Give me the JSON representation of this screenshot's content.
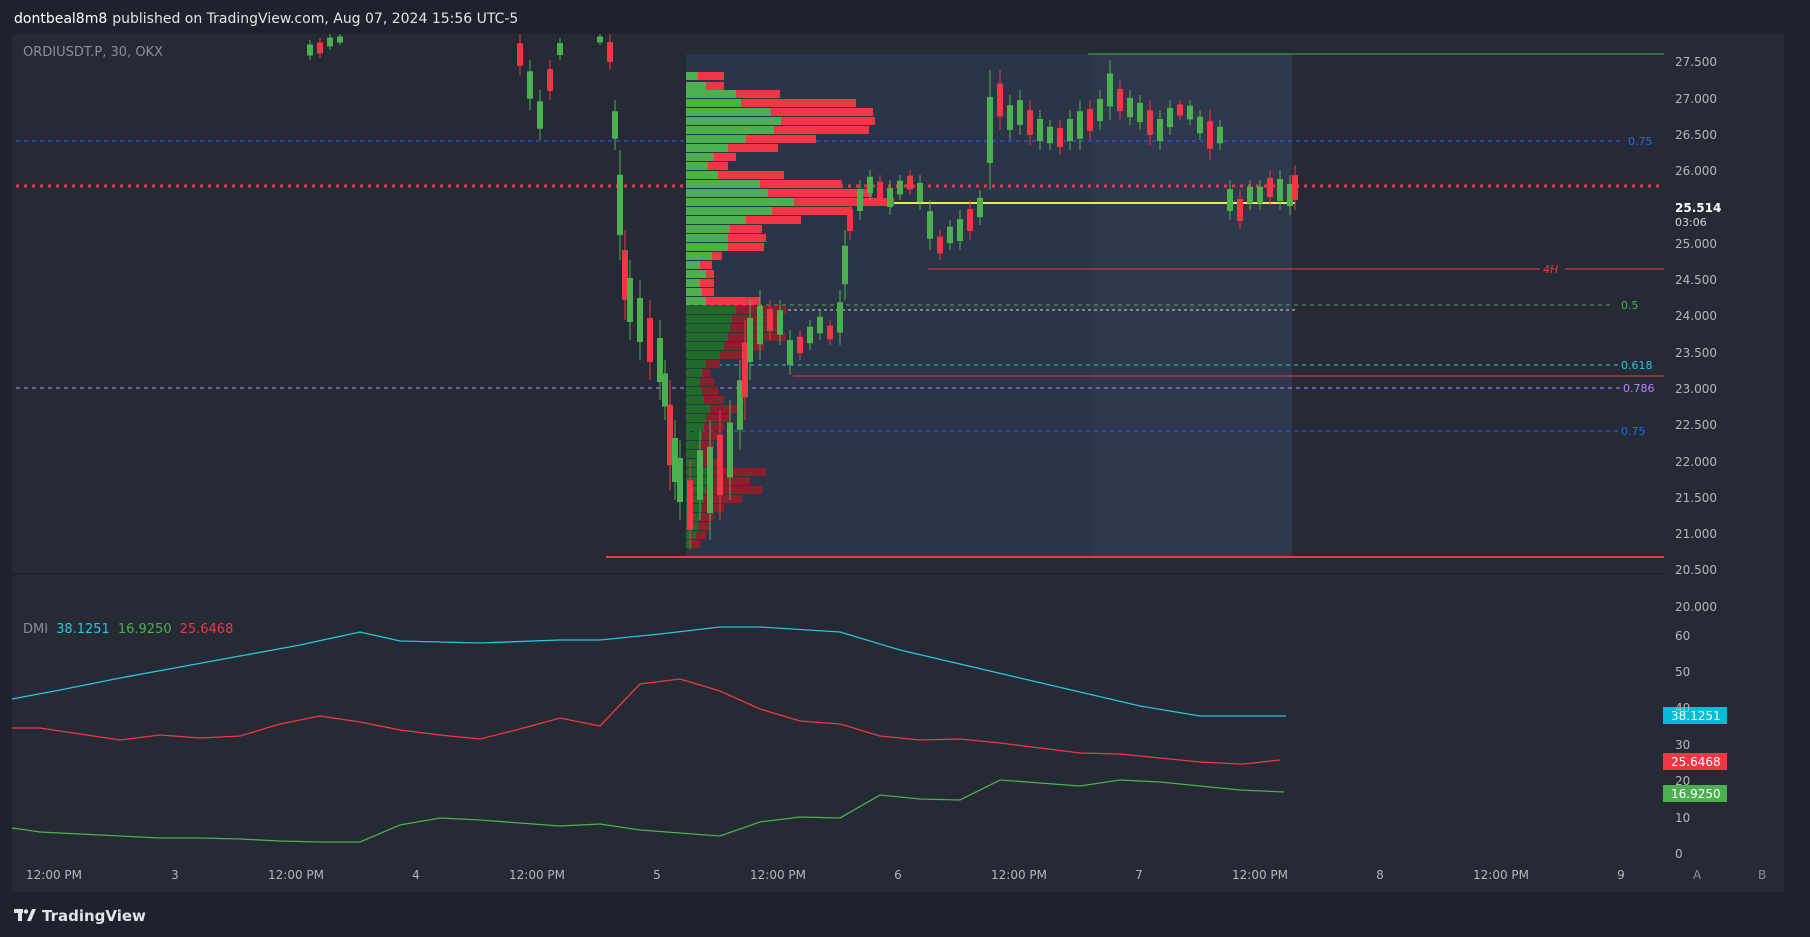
{
  "header": {
    "publisher": "dontbeal8m8",
    "published_text": "published on TradingView.com, Aug 07, 2024 15:56 UTC-5"
  },
  "chart": {
    "symbol_line": "ORDIUSDT.P, 30, OKX",
    "price_axis": [
      "27.500",
      "27.000",
      "26.500",
      "26.000",
      "25.000",
      "24.500",
      "24.000",
      "23.500",
      "23.000",
      "22.500",
      "22.000",
      "21.500",
      "21.000",
      "20.500",
      "20.000"
    ],
    "current_price": "25.514",
    "countdown": "03:06",
    "fib_labels": {
      "top_075": "0.75",
      "fib_05": "0.5",
      "fib_0618": "0.618",
      "fib_0786": "0.786",
      "bottom_075": "0.75"
    },
    "tf_label": "4H",
    "colors": {
      "up": "#4caf50",
      "down": "#f23645",
      "poc": "#e8e85a",
      "dmi_adx": "#26c6da",
      "dmi_minus": "#f23645",
      "dmi_plus": "#4caf50"
    }
  },
  "dmi": {
    "name": "DMI",
    "adx": "38.1251",
    "plus_di": "16.9250",
    "minus_di": "25.6468",
    "axis": [
      "60",
      "50",
      "40",
      "30",
      "20",
      "10",
      "0"
    ]
  },
  "time_axis": [
    "12:00 PM",
    "3",
    "12:00 PM",
    "4",
    "12:00 PM",
    "5",
    "12:00 PM",
    "6",
    "12:00 PM",
    "7",
    "12:00 PM",
    "8",
    "12:00 PM",
    "9"
  ],
  "corner_buttons": {
    "a": "A",
    "b": "B"
  },
  "footer": {
    "brand": "TradingView"
  }
}
